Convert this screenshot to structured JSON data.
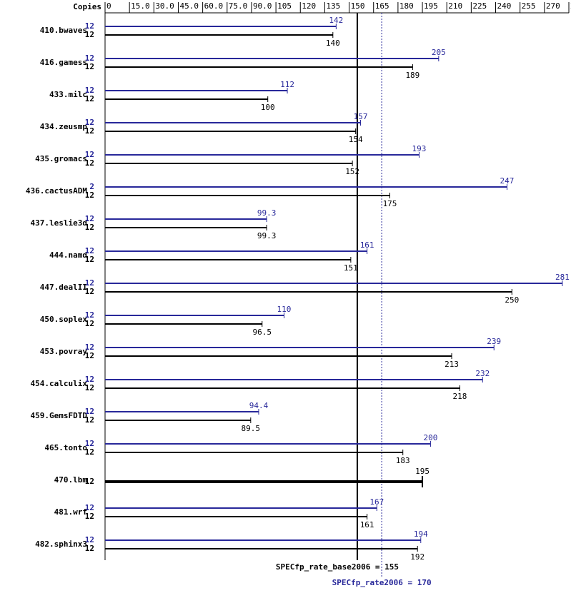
{
  "chart_data": {
    "type": "bar",
    "orientation": "horizontal",
    "copies_label": "Copies",
    "categories": [
      "410.bwaves",
      "416.gamess",
      "433.milc",
      "434.zeusmp",
      "435.gromacs",
      "436.cactusADM",
      "437.leslie3d",
      "444.namd",
      "447.dealII",
      "450.soplex",
      "453.povray",
      "454.calculix",
      "459.GemsFDTD",
      "465.tonto",
      "470.lbm",
      "481.wrf",
      "482.sphinx3"
    ],
    "series": [
      {
        "name": "SPECfp_rate2006",
        "color": "#28289a",
        "copies": [
          12,
          12,
          12,
          12,
          12,
          2,
          12,
          12,
          12,
          12,
          12,
          12,
          12,
          12,
          null,
          12,
          12
        ],
        "values": [
          142,
          205,
          112,
          157,
          193,
          247,
          99.3,
          161,
          281,
          110,
          239,
          232,
          94.4,
          200,
          null,
          167,
          194
        ]
      },
      {
        "name": "SPECfp_rate_base2006",
        "color": "#000000",
        "copies": [
          12,
          12,
          12,
          12,
          12,
          12,
          12,
          12,
          12,
          12,
          12,
          12,
          12,
          12,
          12,
          12,
          12
        ],
        "values": [
          140,
          189,
          100,
          154,
          152,
          175,
          99.3,
          151,
          250,
          96.5,
          213,
          218,
          89.5,
          183,
          195,
          161,
          192
        ]
      }
    ],
    "xlim": [
      0,
      285
    ],
    "xticks": [
      0,
      {
        "value": 15,
        "label": "15.0"
      },
      {
        "value": 30,
        "label": "30.0"
      },
      {
        "value": 45,
        "label": "45.0"
      },
      {
        "value": 60,
        "label": "60.0"
      },
      {
        "value": 75,
        "label": "75.0"
      },
      {
        "value": 90,
        "label": "90.0"
      },
      105,
      120,
      135,
      150,
      165,
      180,
      195,
      210,
      225,
      240,
      255,
      270,
      285
    ],
    "reference_lines": [
      {
        "label": "SPECfp_rate_base2006 = 155",
        "value": 155,
        "color": "#000000",
        "style": "solid"
      },
      {
        "label": "SPECfp_rate2006 = 170",
        "value": 170,
        "color": "#28289a",
        "style": "dotted"
      }
    ]
  }
}
